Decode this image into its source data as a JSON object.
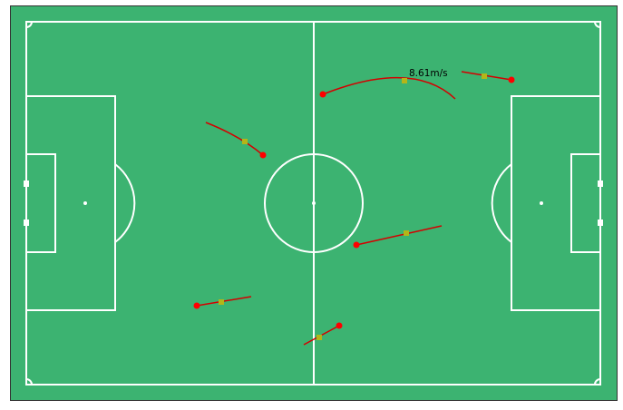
{
  "pitch": {
    "grass_color": "#3cb371",
    "line_color": "#ffffff",
    "frame_color": "#333333"
  },
  "tracks": {
    "path_color": "#d40000",
    "start_marker_color": "#ff0000",
    "mid_marker_color": "#b5b518",
    "speed_label": "8.61m/s"
  }
}
